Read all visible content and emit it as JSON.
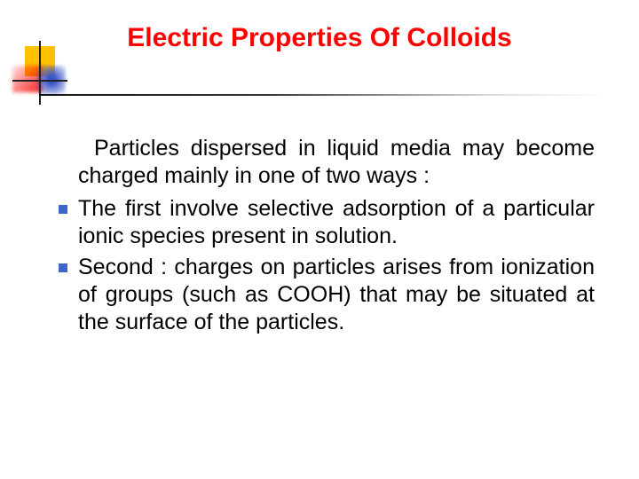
{
  "title": {
    "text": "Electric Properties Of Colloids",
    "color": "#ff0000",
    "fontsize": 30
  },
  "body": {
    "color": "#000000",
    "fontsize": 25,
    "intro": "Particles dispersed in liquid media may become charged mainly in one of two ways :",
    "bullets": [
      "The first involve selective adsorption of a particular ionic species present in solution.",
      "Second : charges on particles arises from ionization of groups (such as COOH) that may be situated at the surface of the particles."
    ]
  },
  "accent": {
    "bullet_color": "#3a66c8",
    "yellow": "#ffc000",
    "red": "#ff0000",
    "blue": "#3a54c8"
  }
}
